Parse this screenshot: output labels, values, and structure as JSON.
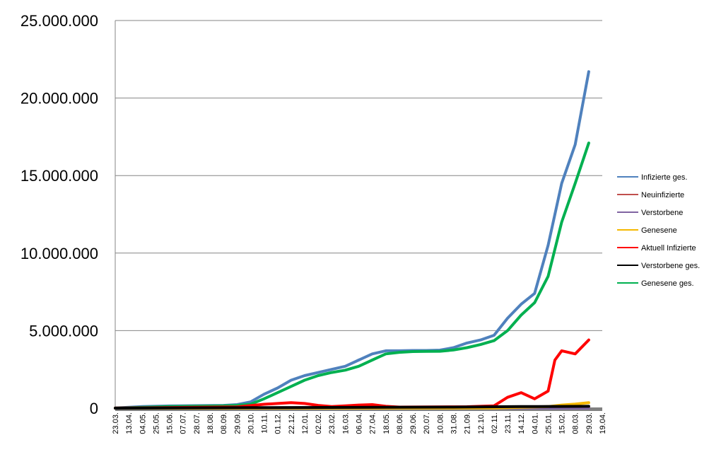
{
  "chart_data": {
    "type": "line",
    "title": "",
    "xlabel": "",
    "ylabel": "",
    "ylim": [
      0,
      25000000
    ],
    "yticks": [
      0,
      5000000,
      10000000,
      15000000,
      20000000,
      25000000
    ],
    "ytick_labels": [
      "0",
      "5.000.000",
      "10.000.000",
      "15.000.000",
      "20.000.000",
      "25.000.000"
    ],
    "x_start": "23.03.",
    "x_end": "19.04.",
    "xtick_labels": [
      "23.03.",
      "13.04.",
      "04.05.",
      "25.05.",
      "15.06.",
      "07.07.",
      "28.07.",
      "18.08.",
      "08.09.",
      "29.09.",
      "20.10.",
      "10.11.",
      "01.12.",
      "22.12.",
      "12.01.",
      "02.02.",
      "23.02.",
      "16.03.",
      "06.04.",
      "27.04.",
      "18.05.",
      "08.06.",
      "29.06.",
      "20.07.",
      "10.08.",
      "31.08.",
      "21.09.",
      "12.10.",
      "02.11.",
      "23.11.",
      "14.12.",
      "04.01.",
      "25.01.",
      "15.02.",
      "08.03.",
      "29.03.",
      "19.04."
    ],
    "grid": true,
    "legend_position": "right",
    "series": [
      {
        "name": "Infizierte ges.",
        "color": "#4F81BD",
        "points": [
          [
            0,
            10000
          ],
          [
            2,
            100000
          ],
          [
            4,
            140000
          ],
          [
            6,
            160000
          ],
          [
            8,
            180000
          ],
          [
            9,
            230000
          ],
          [
            10,
            400000
          ],
          [
            11,
            900000
          ],
          [
            12,
            1300000
          ],
          [
            13,
            1800000
          ],
          [
            14,
            2100000
          ],
          [
            15,
            2300000
          ],
          [
            16,
            2500000
          ],
          [
            17,
            2700000
          ],
          [
            18,
            3100000
          ],
          [
            19,
            3500000
          ],
          [
            20,
            3700000
          ],
          [
            21,
            3700000
          ],
          [
            22,
            3720000
          ],
          [
            23,
            3720000
          ],
          [
            24,
            3740000
          ],
          [
            25,
            3900000
          ],
          [
            26,
            4200000
          ],
          [
            27,
            4400000
          ],
          [
            28,
            4700000
          ],
          [
            29,
            5800000
          ],
          [
            30,
            6700000
          ],
          [
            31,
            7400000
          ],
          [
            32,
            10500000
          ],
          [
            33,
            14500000
          ],
          [
            34,
            17000000
          ],
          [
            35,
            21700000
          ]
        ]
      },
      {
        "name": "Neuinfizierte",
        "color": "#C0504D",
        "points": [
          [
            0,
            5000
          ],
          [
            10,
            20000
          ],
          [
            20,
            15000
          ],
          [
            30,
            30000
          ],
          [
            33,
            40000
          ],
          [
            35,
            45000
          ]
        ]
      },
      {
        "name": "Verstorbene",
        "color": "#8064A2",
        "points": [
          [
            0,
            1000
          ],
          [
            35,
            3000
          ]
        ]
      },
      {
        "name": "Genesene",
        "color": "#F5B800",
        "points": [
          [
            0,
            0
          ],
          [
            28,
            10000
          ],
          [
            32,
            100000
          ],
          [
            33,
            200000
          ],
          [
            34,
            260000
          ],
          [
            35,
            350000
          ]
        ]
      },
      {
        "name": "Aktuell Infizierte",
        "color": "#FF0000",
        "points": [
          [
            0,
            5000
          ],
          [
            9,
            80000
          ],
          [
            11,
            250000
          ],
          [
            12,
            300000
          ],
          [
            13,
            350000
          ],
          [
            14,
            300000
          ],
          [
            15,
            180000
          ],
          [
            16,
            100000
          ],
          [
            17,
            150000
          ],
          [
            18,
            200000
          ],
          [
            19,
            230000
          ],
          [
            20,
            120000
          ],
          [
            21,
            70000
          ],
          [
            26,
            90000
          ],
          [
            28,
            150000
          ],
          [
            29,
            700000
          ],
          [
            30,
            1000000
          ],
          [
            31,
            600000
          ],
          [
            32,
            1100000
          ],
          [
            32.5,
            3100000
          ],
          [
            33,
            3700000
          ],
          [
            34,
            3500000
          ],
          [
            35,
            4400000
          ]
        ]
      },
      {
        "name": "Verstorbene ges.",
        "color": "#000000",
        "points": [
          [
            0,
            0
          ],
          [
            10,
            30000
          ],
          [
            20,
            60000
          ],
          [
            25,
            70000
          ],
          [
            30,
            100000
          ],
          [
            35,
            120000
          ]
        ]
      },
      {
        "name": "Genesene ges.",
        "color": "#00B050",
        "points": [
          [
            0,
            5000
          ],
          [
            4,
            100000
          ],
          [
            8,
            150000
          ],
          [
            9,
            180000
          ],
          [
            10,
            250000
          ],
          [
            11,
            600000
          ],
          [
            12,
            1000000
          ],
          [
            13,
            1400000
          ],
          [
            14,
            1800000
          ],
          [
            15,
            2100000
          ],
          [
            16,
            2300000
          ],
          [
            17,
            2450000
          ],
          [
            18,
            2700000
          ],
          [
            19,
            3100000
          ],
          [
            20,
            3500000
          ],
          [
            21,
            3600000
          ],
          [
            22,
            3650000
          ],
          [
            23,
            3660000
          ],
          [
            24,
            3670000
          ],
          [
            25,
            3750000
          ],
          [
            26,
            3900000
          ],
          [
            27,
            4100000
          ],
          [
            28,
            4350000
          ],
          [
            29,
            5000000
          ],
          [
            30,
            6000000
          ],
          [
            31,
            6800000
          ],
          [
            32,
            8500000
          ],
          [
            33,
            12000000
          ],
          [
            34,
            14500000
          ],
          [
            35,
            17100000
          ]
        ]
      }
    ]
  }
}
